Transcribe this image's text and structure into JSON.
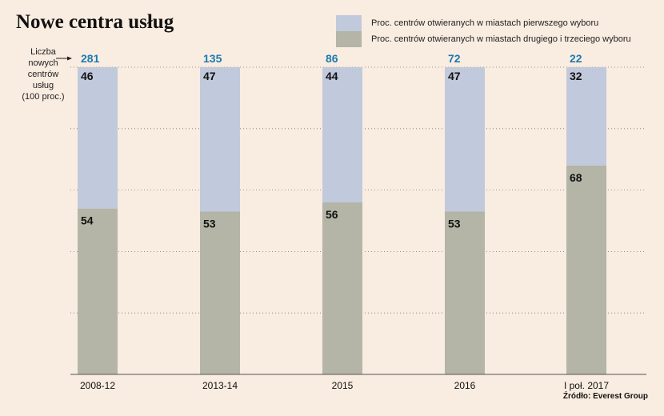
{
  "title": "Nowe centra usług",
  "legend": [
    {
      "label": "Proc. centrów otwieranych w miastach pierwszego wyboru",
      "color": "#c1c9dc"
    },
    {
      "label": "Proc. centrów otwieranych w miastach drugiego i trzeciego wyboru",
      "color": "#b4b4a7"
    }
  ],
  "ylabel_lines": [
    "Liczba",
    "nowych",
    "centrów",
    "usług",
    "(100 proc.)"
  ],
  "source": "Źródło: Everest Group",
  "chart_data": {
    "type": "bar",
    "stacked": true,
    "normalized": true,
    "categories": [
      "2008-12",
      "2013-14",
      "2015",
      "2016",
      "I poł. 2017"
    ],
    "totals": [
      281,
      135,
      86,
      72,
      22
    ],
    "totals_color": "#1b7ab3",
    "series": [
      {
        "name": "Proc. centrów otwieranych w miastach pierwszego wyboru",
        "values": [
          46,
          47,
          44,
          47,
          32
        ],
        "color": "#c1c9dc"
      },
      {
        "name": "Proc. centrów otwieranych w miastach drugiego i trzeciego wyboru",
        "values": [
          54,
          53,
          56,
          53,
          68
        ],
        "color": "#b4b4a7"
      }
    ],
    "ylim": [
      0,
      100
    ],
    "grid": true
  }
}
